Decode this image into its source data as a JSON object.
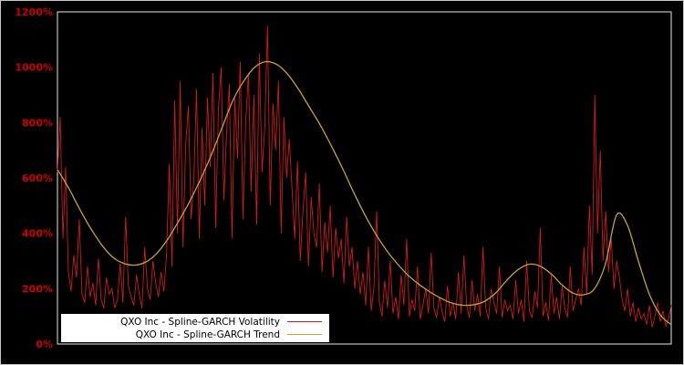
{
  "figure": {
    "background": "#000000",
    "plot_border_color": "#e6e6e6",
    "axis_label_color": "#cc0000"
  },
  "chart_data": {
    "type": "line",
    "title": "",
    "xlabel": "",
    "ylabel": "",
    "ylim": [
      0,
      1200
    ],
    "grid": false,
    "legend_position": "lower-left",
    "yticks": [
      "0%",
      "200%",
      "400%",
      "600%",
      "800%",
      "1000%",
      "1200%"
    ],
    "ytick_values": [
      0,
      200,
      400,
      600,
      800,
      1000,
      1200
    ],
    "series": [
      {
        "name": "QXO Inc - Spline-GARCH Volatility",
        "color": "#d11a1a",
        "values": [
          620,
          820,
          380,
          640,
          260,
          190,
          320,
          240,
          450,
          180,
          150,
          280,
          170,
          220,
          140,
          310,
          160,
          130,
          240,
          180,
          200,
          130,
          160,
          290,
          150,
          460,
          210,
          170,
          140,
          250,
          180,
          130,
          350,
          200,
          160,
          300,
          220,
          170,
          260,
          190,
          320,
          650,
          280,
          880,
          400,
          950,
          350,
          720,
          860,
          450,
          600,
          920,
          380,
          780,
          500,
          890,
          640,
          980,
          420,
          850,
          1000,
          520,
          760,
          940,
          380,
          890,
          670,
          1020,
          450,
          800,
          980,
          550,
          900,
          430,
          1050,
          620,
          780,
          1150,
          500,
          870,
          700,
          950,
          400,
          820,
          600,
          740,
          560,
          380,
          660,
          300,
          480,
          620,
          280,
          530,
          400,
          350,
          580,
          260,
          440,
          330,
          500,
          240,
          420,
          310,
          380,
          220,
          460,
          280,
          350,
          200,
          300,
          180,
          260,
          140,
          350,
          120,
          200,
          480,
          150,
          100,
          230,
          130,
          300,
          110,
          170,
          90,
          250,
          140,
          380,
          100,
          160,
          120,
          280,
          90,
          140,
          200,
          110,
          330,
          130,
          95,
          170,
          120,
          80,
          210,
          100,
          150,
          90,
          260,
          110,
          320,
          140,
          95,
          230,
          120,
          180,
          100,
          350,
          130,
          90,
          200,
          150,
          110,
          280,
          95,
          160,
          120,
          140,
          90,
          230,
          110,
          160,
          80,
          300,
          120,
          95,
          190,
          130,
          420,
          100,
          150,
          85,
          250,
          110,
          170,
          90,
          210,
          130,
          95,
          280,
          120,
          160,
          200,
          140,
          350,
          180,
          500,
          250,
          900,
          400,
          700,
          300,
          480,
          260,
          380,
          200,
          300,
          240,
          160,
          120,
          200,
          100,
          150,
          80,
          130,
          90,
          110,
          70,
          140,
          60,
          100,
          150,
          80,
          120,
          65,
          90,
          140
        ]
      },
      {
        "name": "QXO Inc - Spline-GARCH Trend",
        "color": "#c8a42a",
        "values": [
          630,
          565,
          490,
          420,
          360,
          315,
          292,
          285,
          295,
          325,
          375,
          440,
          510,
          590,
          680,
          780,
          880,
          950,
          1000,
          1020,
          1010,
          975,
          920,
          855,
          790,
          715,
          635,
          550,
          470,
          400,
          340,
          290,
          248,
          215,
          188,
          165,
          148,
          140,
          142,
          155,
          185,
          230,
          268,
          288,
          282,
          255,
          215,
          185,
          178,
          200,
          290,
          465,
          430,
          300,
          180,
          105,
          70
        ]
      }
    ]
  }
}
